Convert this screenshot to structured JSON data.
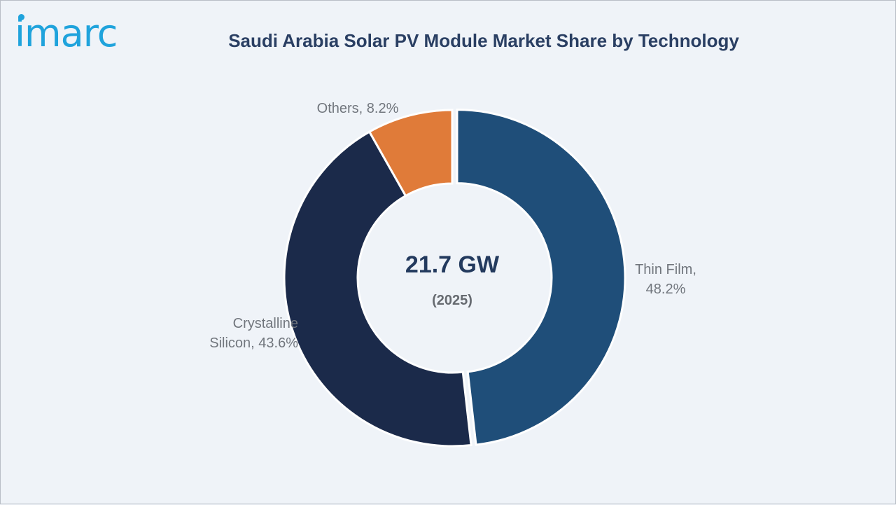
{
  "brand": {
    "logo_text": "imarc",
    "logo_color": "#1fa3dc"
  },
  "chart_data": {
    "type": "pie",
    "variant": "donut",
    "title": "Saudi Arabia Solar PV Module Market Share by Technology",
    "center_value": "21.7 GW",
    "center_subtitle": "(2025)",
    "slices": [
      {
        "label": "Thin Film",
        "value": 48.2,
        "color": "#1f4e79",
        "display": "Thin Film,\n48.2%"
      },
      {
        "label": "Crystalline Silicon",
        "value": 43.6,
        "color": "#1b2a4a",
        "display": "Crystalline\nSilicon, 43.6%"
      },
      {
        "label": "Others",
        "value": 8.2,
        "color": "#e07b39",
        "display": "Others, 8.2%"
      }
    ]
  }
}
